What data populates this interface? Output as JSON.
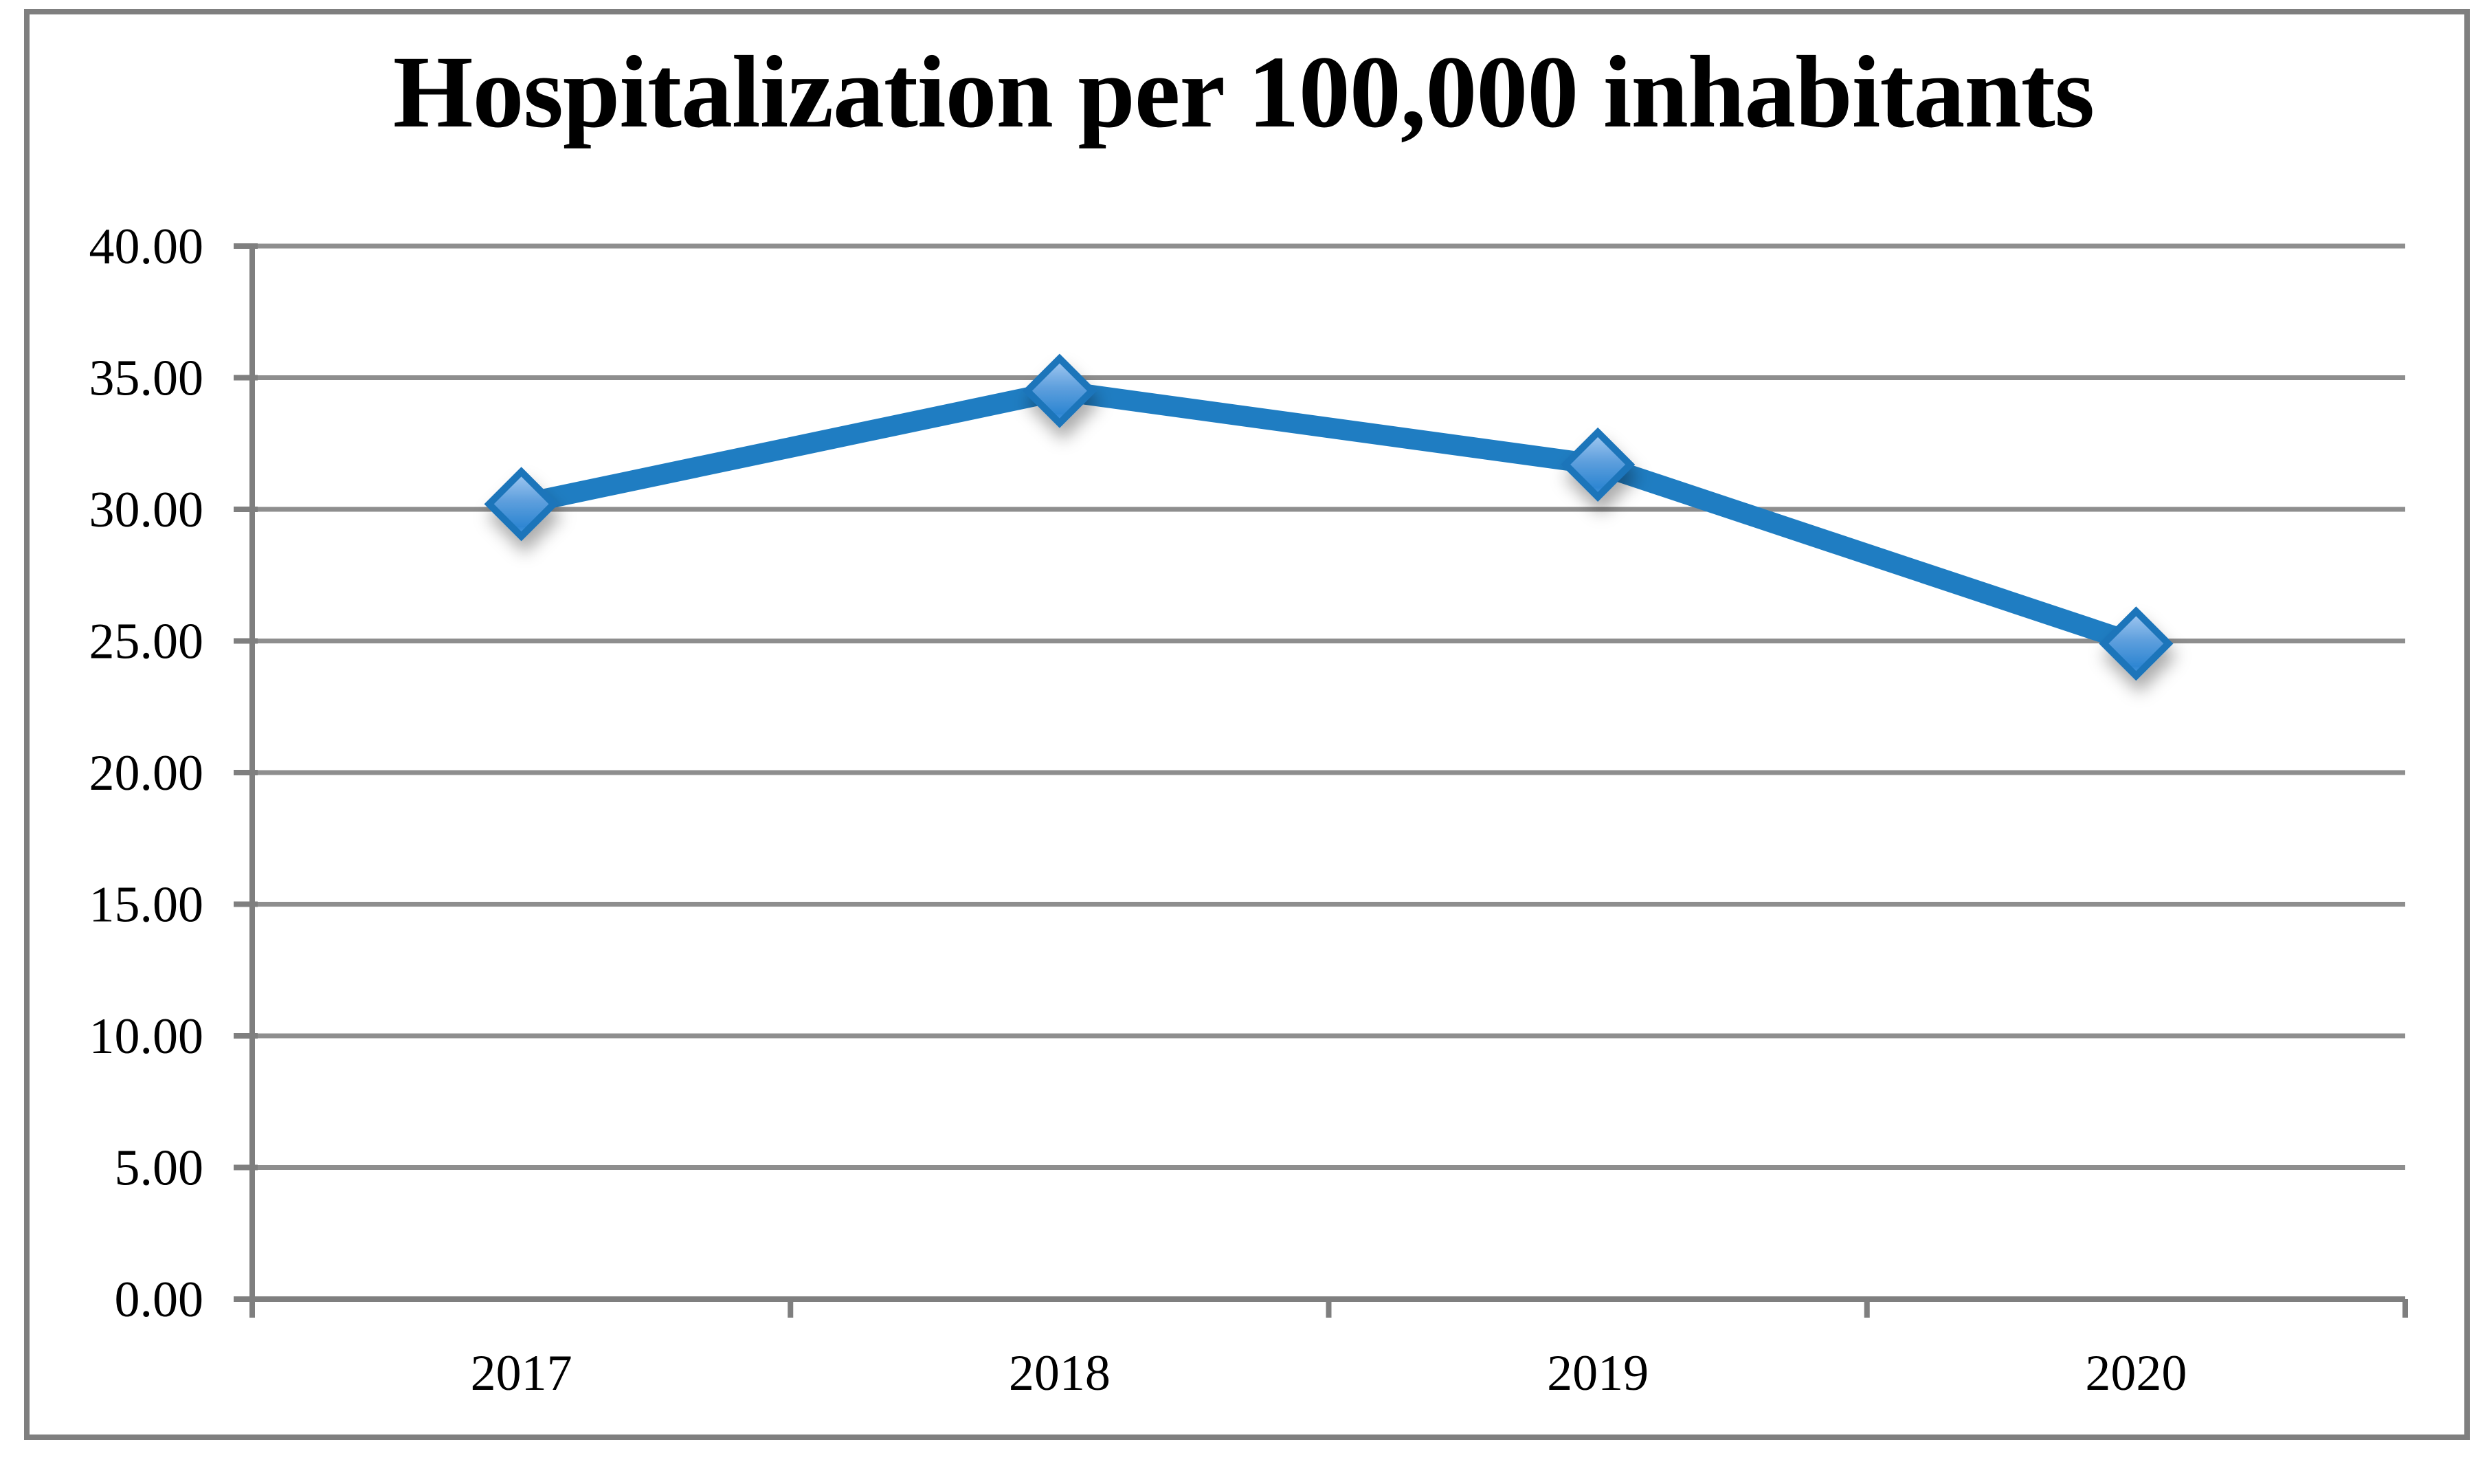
{
  "title": "Hospitalization per 100,000 inhabitants",
  "chart_data": {
    "type": "line",
    "title": "Hospitalization per 100,000 inhabitants",
    "categories": [
      "2017",
      "2018",
      "2019",
      "2020"
    ],
    "values": [
      30.2,
      34.5,
      31.7,
      24.9
    ],
    "xlabel": "",
    "ylabel": "",
    "ylim": [
      0,
      40
    ],
    "ytick_step": 5,
    "ytick_labels": [
      "0.00",
      "5.00",
      "10.00",
      "15.00",
      "20.00",
      "25.00",
      "30.00",
      "35.00",
      "40.00"
    ],
    "grid": true,
    "legend_position": "none",
    "marker_shape": "diamond",
    "colors": {
      "line": "#1F7DC2",
      "marker_border": "#1B74BA",
      "marker_gradient_top": "#A6CBF2",
      "marker_gradient_mid": "#5E9FDD",
      "marker_gradient_bottom": "#2E86D2",
      "marker_tip_glow": "#4D9CE4",
      "gridline": "#8E8E8E",
      "axis": "#7F7F7F",
      "frame_border": "#7F7F7F",
      "text": "#000000",
      "background": "#FFFFFF"
    }
  }
}
